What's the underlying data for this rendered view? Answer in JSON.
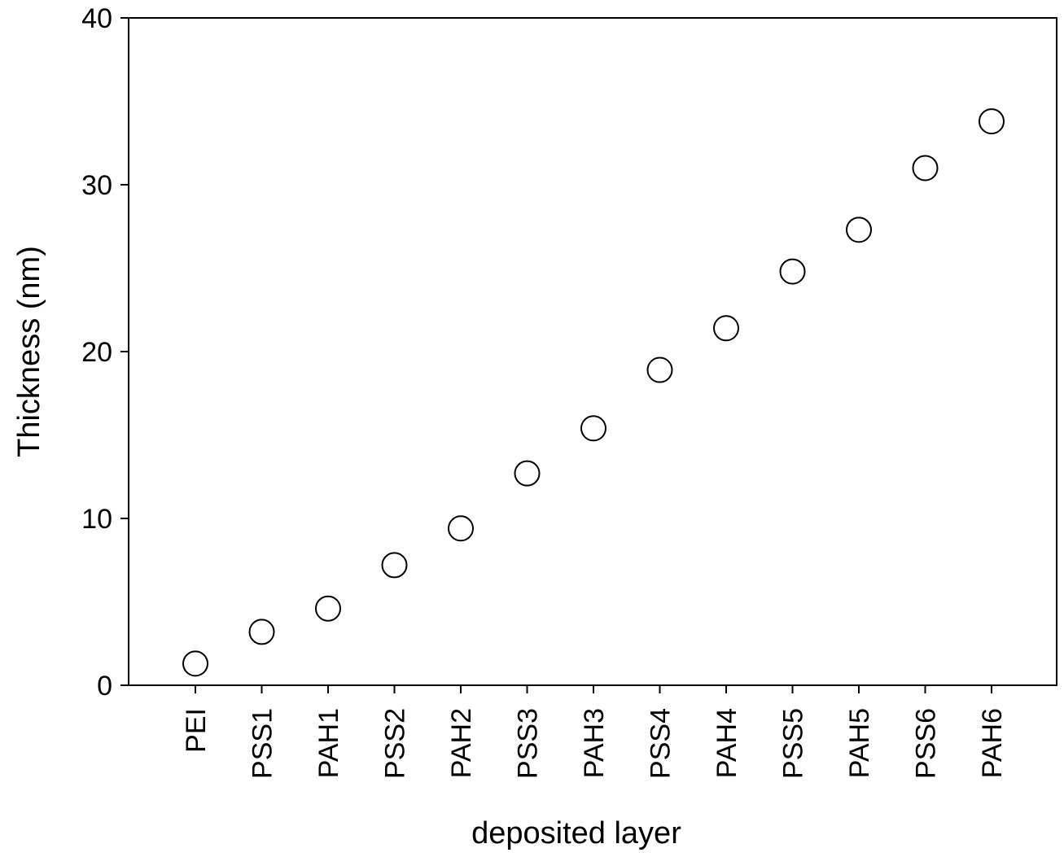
{
  "chart_data": {
    "type": "scatter",
    "title": "",
    "xlabel": "deposited layer",
    "ylabel": "Thickness (nm)",
    "ylim": [
      0,
      40
    ],
    "yticks": [
      "0",
      "10",
      "20",
      "30",
      "40"
    ],
    "grid": false,
    "legend": "none",
    "marker": "open-circle",
    "categories": [
      "PEI",
      "PSS1",
      "PAH1",
      "PSS2",
      "PAH2",
      "PSS3",
      "PAH3",
      "PSS4",
      "PAH4",
      "PSS5",
      "PAH5",
      "PSS6",
      "PAH6"
    ],
    "values": [
      1.3,
      3.2,
      4.6,
      7.2,
      9.4,
      12.7,
      15.4,
      18.9,
      21.4,
      24.8,
      27.3,
      31.0,
      33.8
    ]
  }
}
